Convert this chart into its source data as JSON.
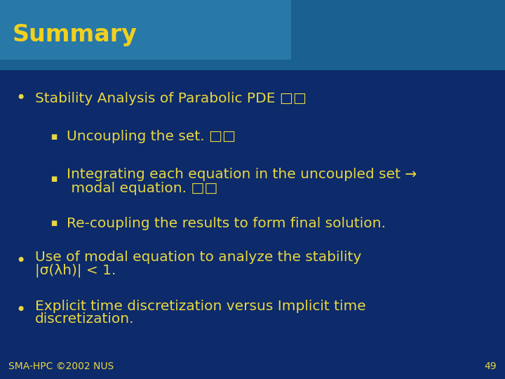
{
  "bg_color": "#0d2a6b",
  "title_text": "Summary",
  "title_color": "#f0d020",
  "title_bg_main": "#1a6090",
  "title_bg_right": "#1a5580",
  "text_color": "#e8d840",
  "footer_text": "SMA-HPC ©2002 NUS",
  "footer_page": "49",
  "bullet1": "Stability Analysis of Parabolic PDE □□",
  "sub1": "Uncoupling the set. □□",
  "sub2_line1": "Integrating each equation in the uncoupled set →",
  "sub2_line2": " modal equation. □□",
  "sub3": "Re-coupling the results to form final solution.",
  "bullet2_line1": "Use of modal equation to analyze the stability",
  "bullet2_line2": "|σ(λh)| < 1.",
  "bullet3_line1": "Explicit time discretization versus Implicit time",
  "bullet3_line2": "discretization.",
  "font_size_title": 24,
  "font_size_body": 14.5,
  "font_size_footer": 10
}
